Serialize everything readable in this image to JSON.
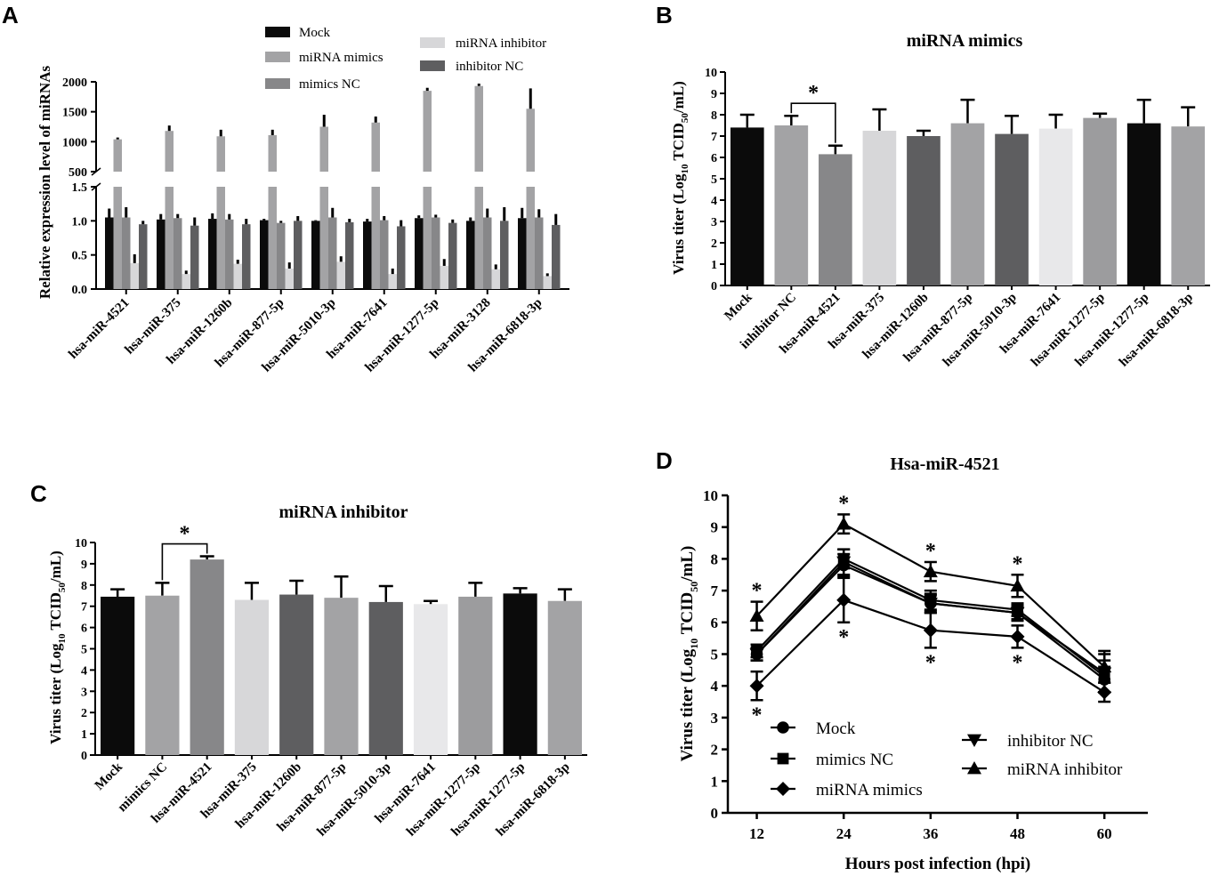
{
  "colors": {
    "mock": "#0b0b0b",
    "mimics": "#a3a3a5",
    "mimics_nc": "#878789",
    "inhibitor": "#d7d7d9",
    "inhibitor_nc": "#5e5e60",
    "bars_B": [
      "#0b0b0b",
      "#a3a3a5",
      "#878789",
      "#d7d7d9",
      "#5e5e60",
      "#a3a3a5",
      "#5e5e60",
      "#e8e8ea",
      "#9c9c9e",
      "#0b0b0b",
      "#a3a3a5"
    ],
    "bars_C": [
      "#0b0b0b",
      "#a3a3a5",
      "#878789",
      "#d7d7d9",
      "#5e5e60",
      "#a3a3a5",
      "#5e5e60",
      "#e8e8ea",
      "#9c9c9e",
      "#0b0b0b",
      "#a3a3a5"
    ]
  },
  "chart_data": [
    {
      "panel": "A",
      "type": "bar",
      "title": "",
      "ylabel": "Relative expression level of miRNAs",
      "xlabel": "",
      "broken_axis": {
        "lower_range": [
          0,
          1.5
        ],
        "upper_range": [
          500,
          2000
        ]
      },
      "yticks_lower": [
        "0.0",
        "0.5",
        "1.0",
        "1.5"
      ],
      "yticks_upper": [
        "500",
        "1000",
        "1500",
        "2000"
      ],
      "categories": [
        "hsa-miR-4521",
        "hsa-miR-375",
        "hsa-miR-1260b",
        "hsa-miR-877-5p",
        "hsa-miR-5010-3p",
        "hsa-miR-7641",
        "hsa-miR-1277-5p",
        "hsa-miR-3128",
        "hsa-miR-6818-3p"
      ],
      "legend": [
        "Mock",
        "miRNA mimics",
        "mimics NC",
        "miRNA inhibitor",
        "inhibitor NC"
      ],
      "series": [
        {
          "name": "Mock",
          "values": [
            1.05,
            1.02,
            1.03,
            1.01,
            1.0,
            0.99,
            1.04,
            1.0,
            1.04
          ],
          "errors": [
            0.13,
            0.08,
            0.08,
            0.02,
            0.01,
            0.04,
            0.04,
            0.05,
            0.15
          ]
        },
        {
          "name": "miRNA mimics",
          "values": [
            1040,
            1180,
            1090,
            1110,
            1250,
            1320,
            1850,
            1930,
            1550
          ],
          "errors": [
            30,
            90,
            110,
            90,
            200,
            100,
            50,
            40,
            340
          ]
        },
        {
          "name": "mimics NC",
          "values": [
            1.05,
            1.04,
            1.02,
            0.97,
            1.05,
            1.01,
            1.05,
            1.05,
            1.05
          ],
          "errors": [
            0.15,
            0.06,
            0.08,
            0.03,
            0.14,
            0.06,
            0.04,
            0.13,
            0.12
          ]
        },
        {
          "name": "miRNA inhibitor",
          "values": [
            0.38,
            0.22,
            0.37,
            0.3,
            0.4,
            0.22,
            0.34,
            0.29,
            0.19
          ],
          "errors": [
            0.13,
            0.05,
            0.06,
            0.09,
            0.08,
            0.08,
            0.1,
            0.07,
            0.04
          ]
        },
        {
          "name": "inhibitor NC",
          "values": [
            0.95,
            0.93,
            0.95,
            1.0,
            0.98,
            0.92,
            0.97,
            1.0,
            0.94
          ],
          "errors": [
            0.05,
            0.12,
            0.08,
            0.07,
            0.05,
            0.09,
            0.05,
            0.2,
            0.16
          ]
        }
      ]
    },
    {
      "panel": "B",
      "type": "bar",
      "title": "miRNA mimics",
      "ylabel": "Virus titer (Log10 TCID50/mL)",
      "ylim": [
        0,
        10
      ],
      "yticks": [
        "0",
        "1",
        "2",
        "3",
        "4",
        "5",
        "6",
        "7",
        "8",
        "9",
        "10"
      ],
      "categories": [
        "Mock",
        "inhibitor NC",
        "hsa-miR-4521",
        "hsa-miR-375",
        "hsa-miR-1260b",
        "hsa-miR-877-5p",
        "hsa-miR-5010-3p",
        "hsa-miR-7641",
        "hsa-miR-1277-5p",
        "hsa-miR-1277-5p",
        "hsa-miR-6818-3p"
      ],
      "values": [
        7.4,
        7.5,
        6.15,
        7.25,
        7.0,
        7.6,
        7.1,
        7.35,
        7.85,
        7.6,
        7.45
      ],
      "errors": [
        0.6,
        0.45,
        0.4,
        1.0,
        0.25,
        1.1,
        0.85,
        0.65,
        0.2,
        1.1,
        0.9
      ],
      "significance": {
        "pair": [
          1,
          2
        ],
        "label": "*"
      }
    },
    {
      "panel": "C",
      "type": "bar",
      "title": "miRNA inhibitor",
      "ylabel": "Virus titer (Log10 TCID50/mL)",
      "ylim": [
        0,
        10
      ],
      "yticks": [
        "0",
        "1",
        "2",
        "3",
        "4",
        "5",
        "6",
        "7",
        "8",
        "9",
        "10"
      ],
      "categories": [
        "Mock",
        "mimics NC",
        "hsa-miR-4521",
        "hsa-miR-375",
        "hsa-miR-1260b",
        "hsa-miR-877-5p",
        "hsa-miR-5010-3p",
        "hsa-miR-7641",
        "hsa-miR-1277-5p",
        "hsa-miR-1277-5p",
        "hsa-miR-6818-3p"
      ],
      "values": [
        7.45,
        7.5,
        9.2,
        7.3,
        7.55,
        7.4,
        7.2,
        7.1,
        7.45,
        7.6,
        7.25
      ],
      "errors": [
        0.35,
        0.6,
        0.15,
        0.8,
        0.65,
        1.0,
        0.75,
        0.15,
        0.65,
        0.25,
        0.55
      ],
      "significance": {
        "pair": [
          1,
          2
        ],
        "label": "*"
      }
    },
    {
      "panel": "D",
      "type": "line",
      "title": "Hsa-miR-4521",
      "xlabel": "Hours post infection (hpi)",
      "ylabel": "Virus titer (Log10 TCID50/mL)",
      "x": [
        12,
        24,
        36,
        48,
        60
      ],
      "xticks": [
        "12",
        "24",
        "36",
        "48",
        "60"
      ],
      "ylim": [
        0,
        10
      ],
      "yticks": [
        "0",
        "1",
        "2",
        "3",
        "4",
        "5",
        "6",
        "7",
        "8",
        "9",
        "10"
      ],
      "series": [
        {
          "name": "Mock",
          "marker": "circle",
          "values": [
            5.0,
            7.8,
            6.6,
            6.3,
            4.2
          ],
          "errors": [
            0.2,
            0.35,
            0.25,
            0.2,
            0.4
          ]
        },
        {
          "name": "mimics NC",
          "marker": "square",
          "values": [
            5.1,
            8.0,
            6.7,
            6.4,
            4.3
          ],
          "errors": [
            0.2,
            0.3,
            0.3,
            0.2,
            0.5
          ]
        },
        {
          "name": "miRNA mimics",
          "marker": "diamond",
          "values": [
            4.0,
            6.7,
            5.75,
            5.55,
            3.8
          ],
          "errors": [
            0.45,
            0.7,
            0.55,
            0.35,
            0.3
          ]
        },
        {
          "name": "inhibitor NC",
          "marker": "triangle-down",
          "values": [
            5.0,
            7.9,
            6.6,
            6.3,
            4.4
          ],
          "errors": [
            0.2,
            0.4,
            0.3,
            0.25,
            0.6
          ]
        },
        {
          "name": "miRNA inhibitor",
          "marker": "triangle-up",
          "values": [
            6.2,
            9.1,
            7.6,
            7.15,
            4.6
          ],
          "errors": [
            0.45,
            0.3,
            0.3,
            0.35,
            0.5
          ]
        }
      ],
      "annotations": [
        "*",
        "*",
        "*",
        "*",
        "*",
        "*",
        "*",
        "*"
      ]
    }
  ],
  "panel_labels": [
    "A",
    "B",
    "C",
    "D"
  ]
}
